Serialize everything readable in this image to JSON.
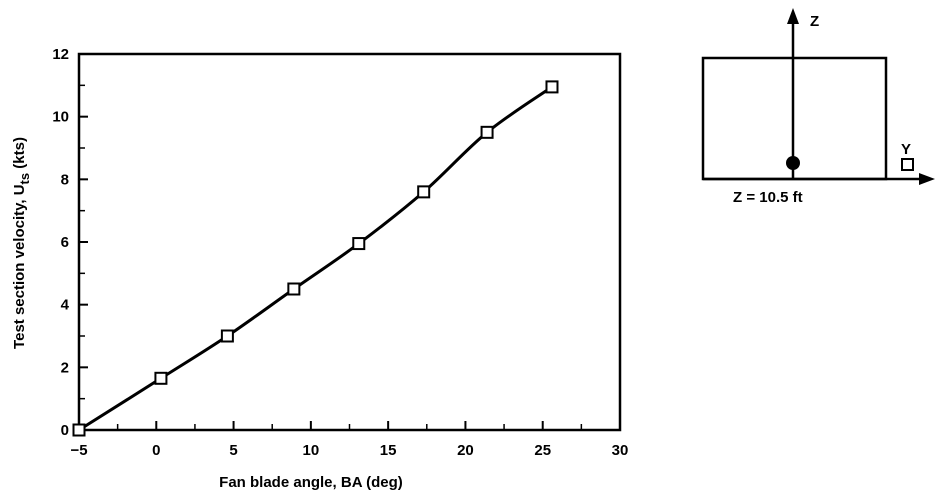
{
  "chart_data": {
    "type": "line",
    "title": "",
    "xlabel": "Fan blade angle, BA (deg)",
    "ylabel_main": "Test section velocity, U",
    "ylabel_sub": "ts",
    "ylabel_unit": " (kts)",
    "xlim": [
      -5,
      30
    ],
    "ylim": [
      0,
      12
    ],
    "xticks": [
      -5,
      0,
      5,
      10,
      15,
      20,
      25,
      30
    ],
    "xtick_labels": [
      "−5",
      "0",
      "5",
      "10",
      "15",
      "20",
      "25",
      "30"
    ],
    "yticks": [
      0,
      2,
      4,
      6,
      8,
      10,
      12
    ],
    "ytick_labels": [
      "0",
      "2",
      "4",
      "6",
      "8",
      "10",
      "12"
    ],
    "grid": false,
    "legend": "none",
    "marker": "open-square",
    "series": [
      {
        "x": [
          -5.0,
          0.3,
          4.6,
          8.9,
          13.1,
          17.3,
          21.4,
          25.6
        ],
        "y": [
          0.0,
          1.65,
          3.0,
          4.5,
          5.95,
          7.6,
          9.5,
          10.95
        ]
      }
    ],
    "inset": {
      "z_label": "Z",
      "y_label": "Y",
      "caption": "Z = 10.5 ft"
    }
  }
}
